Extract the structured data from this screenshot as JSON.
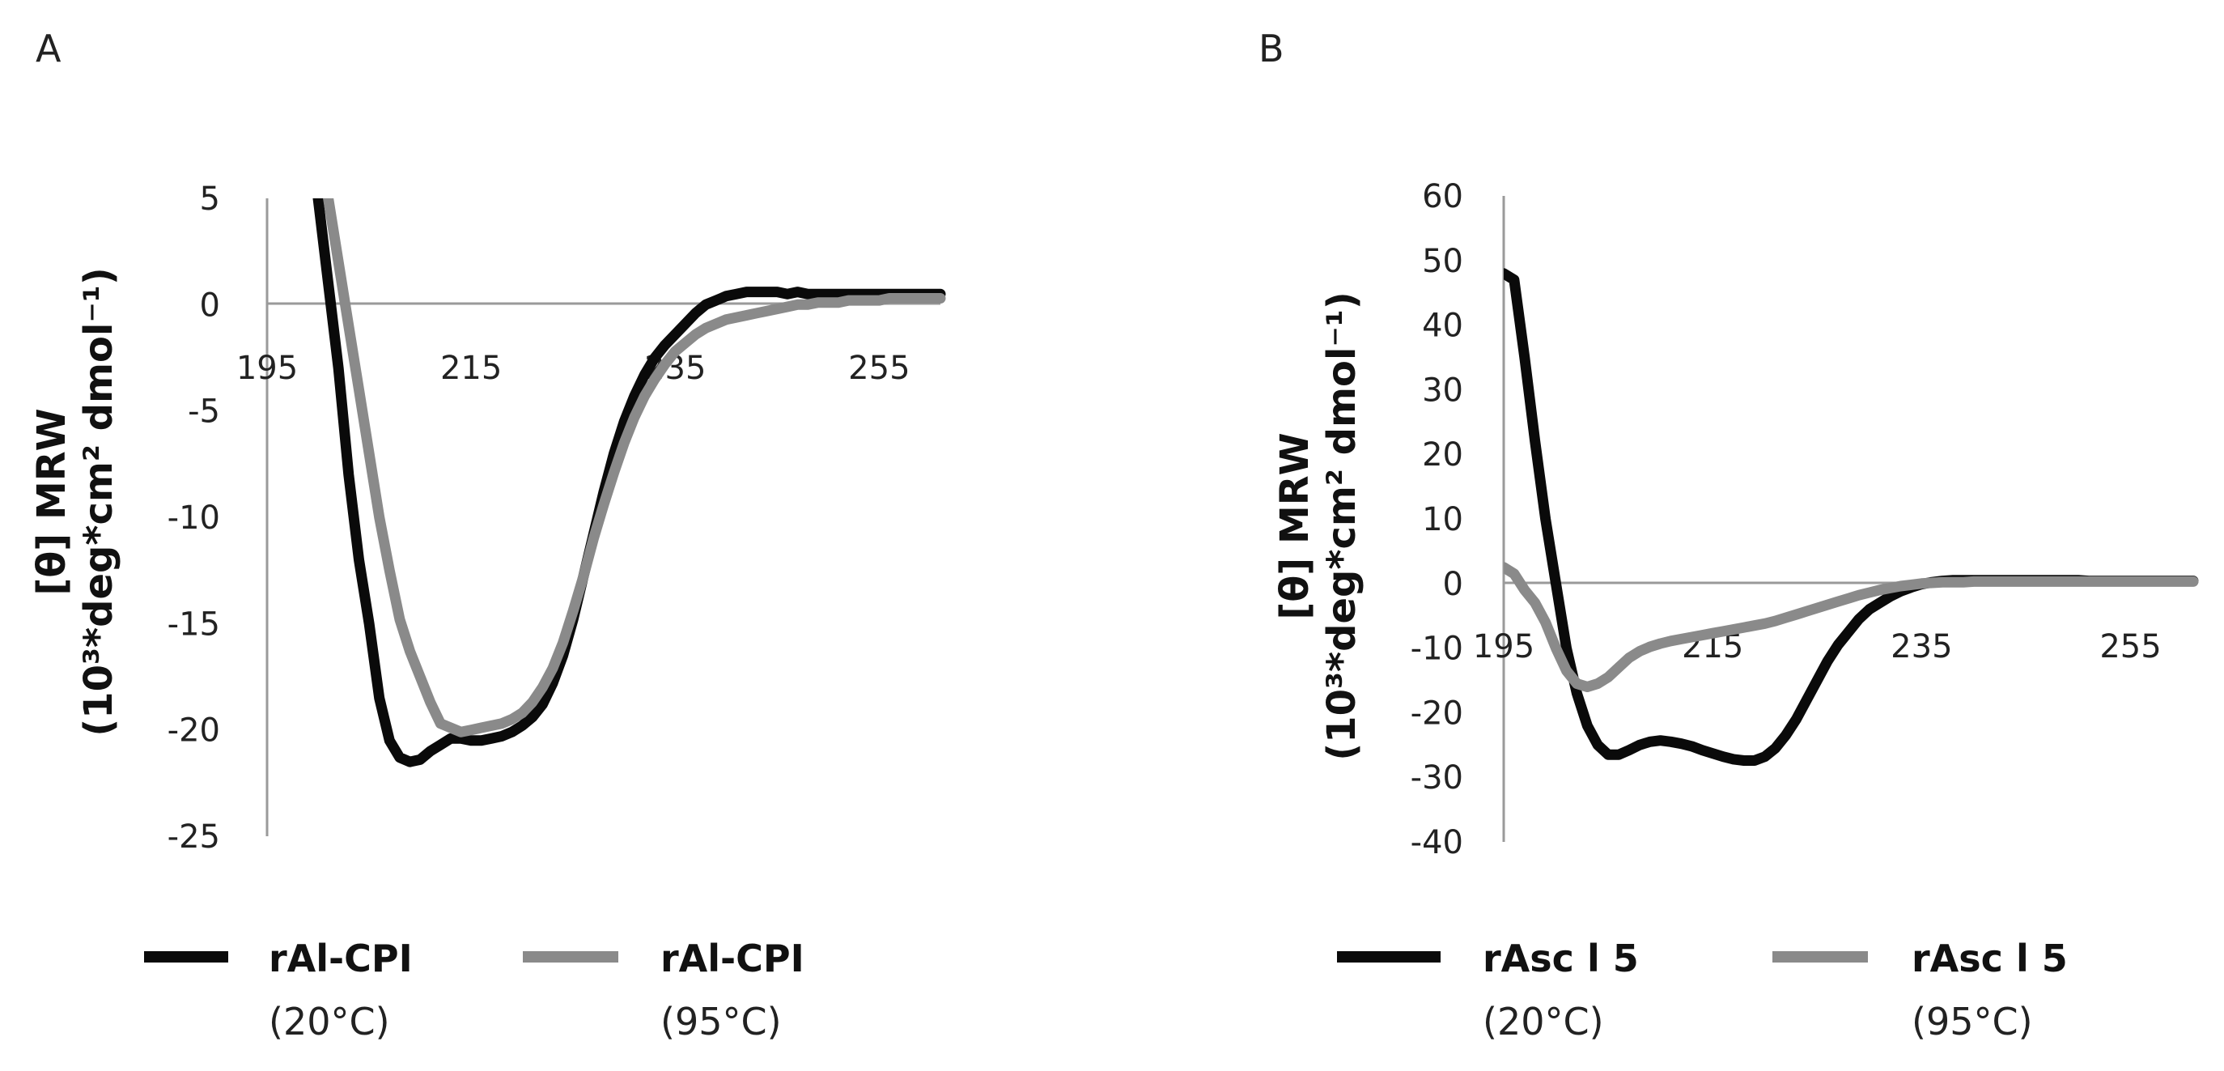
{
  "chart_data": [
    {
      "type": "line",
      "panel_label": "A",
      "ylabel_line1": "[θ] MRW",
      "ylabel_line2": "(10³*deg*cm² dmol⁻¹)",
      "x_ticks": [
        195,
        215,
        235,
        255
      ],
      "y_ticks": [
        5,
        0,
        -5,
        -10,
        -15,
        -20,
        -25
      ],
      "xlim": [
        195,
        261
      ],
      "ylim": [
        -25,
        5
      ],
      "zero_line": true,
      "series": [
        {
          "name": "rAl-CPI",
          "condition": "(20°C)",
          "color": "#0a0a0a",
          "x": [
            200,
            201,
            202,
            203,
            204,
            205,
            206,
            207,
            208,
            209,
            210,
            211,
            212,
            213,
            214,
            215,
            216,
            217,
            218,
            219,
            220,
            221,
            222,
            223,
            224,
            225,
            226,
            227,
            228,
            229,
            230,
            231,
            232,
            233,
            234,
            235,
            236,
            237,
            238,
            239,
            240,
            241,
            242,
            243,
            244,
            245,
            246,
            247,
            248,
            249,
            250,
            251,
            252,
            253,
            254,
            255,
            256,
            257,
            258,
            259,
            260,
            261
          ],
          "y": [
            5,
            1,
            -3,
            -8,
            -12,
            -15,
            -18.5,
            -20.5,
            -21.3,
            -21.5,
            -21.4,
            -21.0,
            -20.7,
            -20.4,
            -20.4,
            -20.5,
            -20.5,
            -20.4,
            -20.3,
            -20.1,
            -19.8,
            -19.4,
            -18.8,
            -17.8,
            -16.5,
            -14.8,
            -12.8,
            -10.8,
            -8.8,
            -7.0,
            -5.5,
            -4.3,
            -3.3,
            -2.5,
            -1.9,
            -1.4,
            -0.9,
            -0.4,
            0.0,
            0.2,
            0.4,
            0.5,
            0.6,
            0.6,
            0.6,
            0.6,
            0.5,
            0.6,
            0.5,
            0.5,
            0.5,
            0.5,
            0.5,
            0.5,
            0.5,
            0.5,
            0.5,
            0.5,
            0.5,
            0.5,
            0.5,
            0.5
          ]
        },
        {
          "name": "rAl-CPI",
          "condition": "(95°C)",
          "color": "#8a8a8a",
          "x": [
            201,
            202,
            203,
            204,
            205,
            206,
            207,
            208,
            209,
            210,
            211,
            212,
            213,
            214,
            215,
            216,
            217,
            218,
            219,
            220,
            221,
            222,
            223,
            224,
            225,
            226,
            227,
            228,
            229,
            230,
            231,
            232,
            233,
            234,
            235,
            236,
            237,
            238,
            239,
            240,
            241,
            242,
            243,
            244,
            245,
            246,
            247,
            248,
            249,
            250,
            251,
            252,
            253,
            254,
            255,
            256,
            257,
            258,
            259,
            260,
            261
          ],
          "y": [
            5,
            2,
            -1,
            -4,
            -7,
            -10,
            -12.5,
            -14.8,
            -16.3,
            -17.5,
            -18.7,
            -19.7,
            -19.9,
            -20.1,
            -20.0,
            -19.9,
            -19.8,
            -19.7,
            -19.5,
            -19.2,
            -18.7,
            -18.0,
            -17.1,
            -15.9,
            -14.4,
            -12.8,
            -11.0,
            -9.4,
            -7.9,
            -6.5,
            -5.3,
            -4.3,
            -3.5,
            -2.8,
            -2.2,
            -1.8,
            -1.4,
            -1.1,
            -0.9,
            -0.7,
            -0.6,
            -0.5,
            -0.4,
            -0.3,
            -0.2,
            -0.1,
            0.0,
            0.0,
            0.1,
            0.1,
            0.1,
            0.2,
            0.2,
            0.2,
            0.2,
            0.3,
            0.3,
            0.3,
            0.3,
            0.3,
            0.3
          ]
        }
      ]
    },
    {
      "type": "line",
      "panel_label": "B",
      "ylabel_line1": "[θ] MRW",
      "ylabel_line2": "(10³*deg*cm² dmol⁻¹)",
      "x_ticks": [
        195,
        215,
        235,
        255
      ],
      "y_ticks": [
        60,
        50,
        40,
        30,
        20,
        10,
        0,
        -10,
        -20,
        -30,
        -40
      ],
      "xlim": [
        195,
        261
      ],
      "ylim": [
        -40,
        60
      ],
      "zero_line": true,
      "series": [
        {
          "name": "rAsc l 5",
          "condition": "(20°C)",
          "color": "#0a0a0a",
          "x": [
            195,
            196,
            197,
            198,
            199,
            200,
            201,
            202,
            203,
            204,
            205,
            206,
            207,
            208,
            209,
            210,
            211,
            212,
            213,
            214,
            215,
            216,
            217,
            218,
            219,
            220,
            221,
            222,
            223,
            224,
            225,
            226,
            227,
            228,
            229,
            230,
            231,
            232,
            233,
            234,
            235,
            236,
            237,
            238,
            239,
            240,
            241,
            242,
            243,
            244,
            245,
            246,
            247,
            248,
            249,
            250,
            251,
            252,
            253,
            254,
            255,
            256,
            257,
            258,
            259,
            260,
            261
          ],
          "y": [
            48,
            47,
            35,
            22,
            10,
            0,
            -10,
            -17,
            -22,
            -25,
            -26.5,
            -26.5,
            -25.8,
            -25,
            -24.5,
            -24.3,
            -24.5,
            -24.8,
            -25.2,
            -25.8,
            -26.3,
            -26.8,
            -27.2,
            -27.4,
            -27.4,
            -26.8,
            -25.5,
            -23.5,
            -21,
            -18,
            -15,
            -12,
            -9.5,
            -7.5,
            -5.5,
            -4,
            -3,
            -2,
            -1.2,
            -0.6,
            -0.1,
            0.2,
            0.4,
            0.5,
            0.5,
            0.5,
            0.5,
            0.5,
            0.5,
            0.5,
            0.5,
            0.5,
            0.5,
            0.5,
            0.5,
            0.5,
            0.4,
            0.4,
            0.4,
            0.4,
            0.4,
            0.4,
            0.4,
            0.4,
            0.4,
            0.4,
            0.4
          ]
        },
        {
          "name": "rAsc l 5",
          "condition": "(95°C)",
          "color": "#8a8a8a",
          "x": [
            195,
            196,
            197,
            198,
            199,
            200,
            201,
            202,
            203,
            204,
            205,
            206,
            207,
            208,
            209,
            210,
            211,
            212,
            213,
            214,
            215,
            216,
            217,
            218,
            219,
            220,
            221,
            222,
            223,
            224,
            225,
            226,
            227,
            228,
            229,
            230,
            231,
            232,
            233,
            234,
            235,
            236,
            237,
            238,
            239,
            240,
            241,
            242,
            243,
            244,
            245,
            246,
            247,
            248,
            249,
            250,
            251,
            252,
            253,
            254,
            255,
            256,
            257,
            258,
            259,
            260,
            261
          ],
          "y": [
            2.5,
            1.5,
            -1,
            -3,
            -6,
            -10,
            -13.5,
            -15.5,
            -16.0,
            -15.5,
            -14.5,
            -13.0,
            -11.5,
            -10.5,
            -9.8,
            -9.3,
            -8.9,
            -8.6,
            -8.3,
            -8.0,
            -7.7,
            -7.4,
            -7.1,
            -6.8,
            -6.5,
            -6.2,
            -5.8,
            -5.3,
            -4.8,
            -4.3,
            -3.8,
            -3.3,
            -2.8,
            -2.3,
            -1.8,
            -1.4,
            -1.0,
            -0.7,
            -0.4,
            -0.2,
            0.0,
            0.1,
            0.2,
            0.2,
            0.2,
            0.3,
            0.3,
            0.3,
            0.3,
            0.3,
            0.3,
            0.3,
            0.3,
            0.3,
            0.3,
            0.3,
            0.3,
            0.3,
            0.3,
            0.3,
            0.3,
            0.3,
            0.3,
            0.3,
            0.3,
            0.3,
            0.3
          ]
        }
      ]
    }
  ]
}
